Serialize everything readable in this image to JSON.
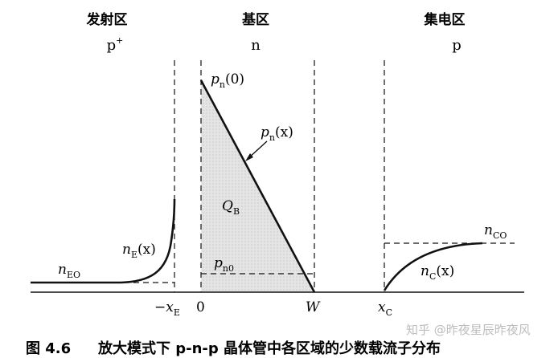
{
  "regions": {
    "emitter": {
      "name": "发射区",
      "doping": "p",
      "doping_sup": "+"
    },
    "base": {
      "name": "基区",
      "doping": "n"
    },
    "collector": {
      "name": "集电区",
      "doping": "p"
    }
  },
  "labels": {
    "pn0_top": {
      "main": "p",
      "sub": "n",
      "rest": "(0)"
    },
    "pn_x": {
      "main": "p",
      "sub": "n",
      "rest": "(x)"
    },
    "QB": {
      "main": "Q",
      "sub": "B"
    },
    "pn0": {
      "main": "p",
      "sub": "n0"
    },
    "nEO": {
      "main": "n",
      "sub": "EO"
    },
    "nE_x": {
      "main": "n",
      "sub": "E",
      "rest": "(x)"
    },
    "nCO": {
      "main": "n",
      "sub": "CO"
    },
    "nC_x": {
      "main": "n",
      "sub": "C",
      "rest": "(x)"
    }
  },
  "ticks": {
    "neg_xE": {
      "main": "−x",
      "sub": "E"
    },
    "zero": "0",
    "W": "W",
    "xC": {
      "main": "x",
      "sub": "C"
    }
  },
  "caption": {
    "figure": "图 4.6",
    "text": "放大模式下 p-n-p 晶体管中各区域的少数载流子分布"
  },
  "watermark": "知乎 @昨夜星辰昨夜风"
}
